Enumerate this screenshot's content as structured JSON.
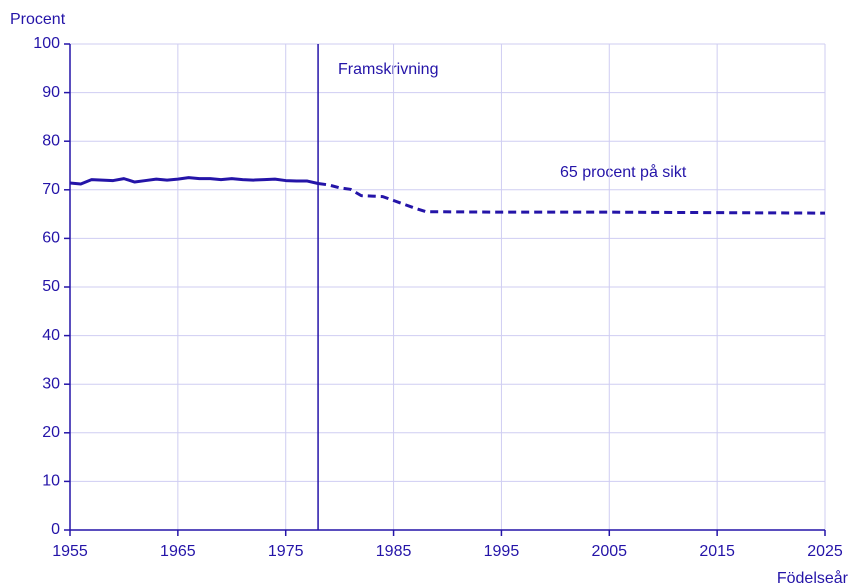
{
  "chart_data": {
    "type": "line",
    "y_label": "Procent",
    "x_label": "Födelseår",
    "annotations": [
      "Framskrivning",
      "65 procent på sikt"
    ],
    "vline": 1978,
    "xlim": [
      1955,
      2025
    ],
    "xticks": [
      1955,
      1965,
      1975,
      1985,
      1995,
      2005,
      2015,
      2025
    ],
    "ylim": [
      0,
      100
    ],
    "yticks": [
      0,
      10,
      20,
      30,
      40,
      50,
      60,
      70,
      80,
      90,
      100
    ],
    "grid": true,
    "series": [
      {
        "color": "#2414a8",
        "style": "solid",
        "x": [
          1955,
          1956,
          1957,
          1958,
          1959,
          1960,
          1961,
          1962,
          1963,
          1964,
          1965,
          1966,
          1967,
          1968,
          1969,
          1970,
          1971,
          1972,
          1973,
          1974,
          1975,
          1976,
          1977,
          1978
        ],
        "values": [
          71.4,
          71.2,
          72.1,
          72.0,
          71.9,
          72.3,
          71.6,
          71.9,
          72.2,
          72.0,
          72.2,
          72.5,
          72.3,
          72.3,
          72.1,
          72.3,
          72.1,
          72.0,
          72.1,
          72.2,
          71.9,
          71.8,
          71.8,
          71.3
        ]
      },
      {
        "color": "#2414a8",
        "style": "dashed",
        "x": [
          1978,
          1979,
          1980,
          1981,
          1982,
          1983,
          1984,
          1985,
          1986,
          1987,
          1988,
          1995,
          2005,
          2015,
          2025
        ],
        "values": [
          71.3,
          71.0,
          70.4,
          70.1,
          68.8,
          68.7,
          68.6,
          67.8,
          67.0,
          66.2,
          65.5,
          65.4,
          65.4,
          65.3,
          65.2
        ]
      }
    ]
  }
}
